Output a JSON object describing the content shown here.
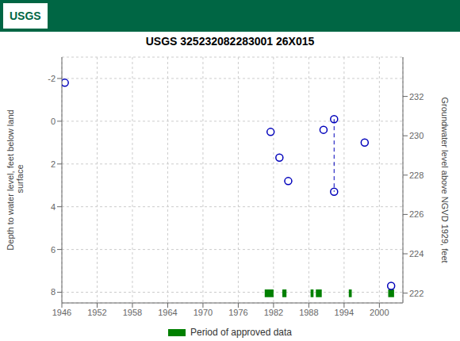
{
  "chart_data": {
    "type": "scatter",
    "title": "USGS 325232082283001 26X015",
    "annotations": [
      "USGS"
    ],
    "y_label": "Depth to water level, feet below land\n surface",
    "y2_label": "Groundwater level above NGVD 1929, feet",
    "series": [
      {
        "type": "scatter",
        "color": "#0000bb",
        "marker": "circle",
        "x": [
          1946.5,
          1981.5,
          1983.0,
          1984.5,
          1990.5,
          1992.3,
          1992.3,
          1997.5,
          2002.0
        ],
        "values": [
          -1.8,
          0.5,
          1.7,
          2.8,
          0.4,
          -0.1,
          3.3,
          1.0,
          7.7
        ]
      },
      {
        "type": "line",
        "color": "#0000bb",
        "line_style": "dashed",
        "x": [
          1992.3,
          1992.3
        ],
        "values": [
          -0.1,
          3.3
        ]
      },
      {
        "type": "band",
        "name": "Period of approved data",
        "color": "#008000",
        "periods": [
          [
            1980.5,
            1982.0
          ],
          [
            1983.5,
            1984.2
          ],
          [
            1988.3,
            1988.8
          ],
          [
            1989.2,
            1990.2
          ],
          [
            1994.8,
            1995.3
          ],
          [
            2001.5,
            2002.5
          ]
        ],
        "y_range": [
          7.87,
          8.23
        ]
      }
    ],
    "xlim": [
      1946,
      2004
    ],
    "xticks": [
      1946,
      1952,
      1958,
      1964,
      1970,
      1976,
      1982,
      1988,
      1994,
      2000
    ],
    "ylim": [
      8.5,
      -3.0
    ],
    "yticks": [
      8.0,
      6.0,
      4.0,
      2.0,
      0.0,
      -2.0
    ],
    "y2lim": [
      221.5,
      234.0
    ],
    "y2ticks": [
      222.0,
      224.0,
      226.0,
      228.0,
      230.0,
      232.0
    ],
    "grid": true,
    "legend": "bottom",
    "header_color": "#006644"
  }
}
